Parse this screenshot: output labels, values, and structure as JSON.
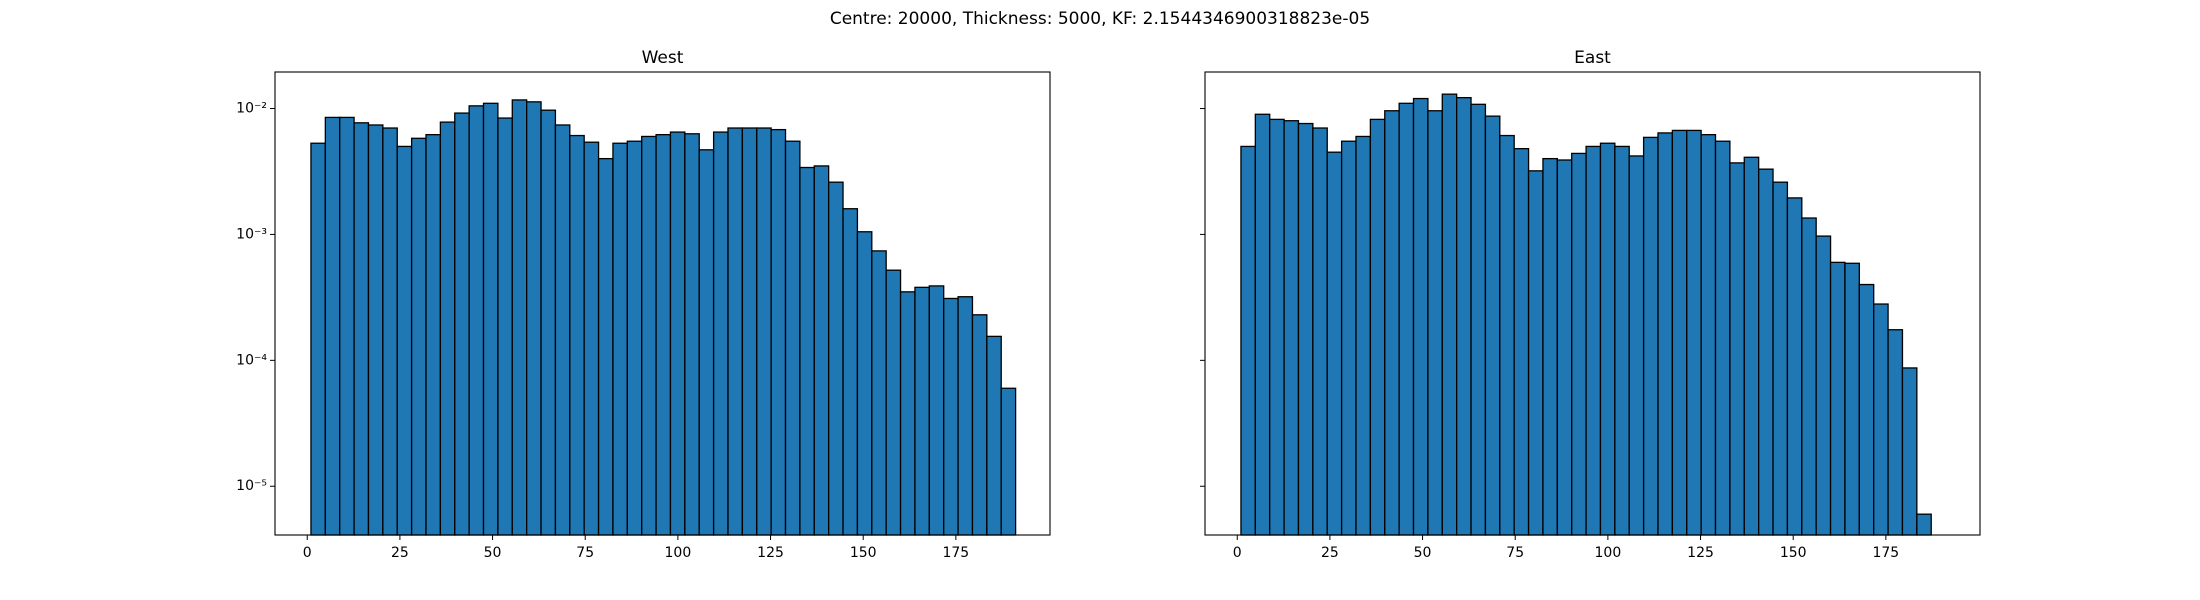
{
  "title": "Centre: 20000, Thickness: 5000, KF: 2.1544346900318823e-05",
  "chart_data": [
    {
      "type": "histogram",
      "title": "West",
      "color": "#1f77b4",
      "edgecolor": "#000000",
      "log": true,
      "bins": [
        1,
        4.88,
        8.76,
        12.64,
        16.52,
        20.4,
        24.28,
        28.16,
        32.04,
        35.92,
        39.8,
        43.68,
        47.56,
        51.44,
        55.32,
        59.2,
        63.08,
        66.96,
        70.84,
        74.72,
        78.6,
        82.48,
        86.36,
        90.24,
        94.12,
        98,
        101.88,
        105.76,
        109.64,
        113.52,
        117.4,
        121.28,
        125.16,
        129.04,
        132.92,
        136.8,
        140.68,
        144.56,
        148.44,
        152.32,
        156.2,
        160.08,
        163.96,
        167.84,
        171.72,
        175.6,
        179.48,
        183.36,
        187.24,
        191.12
      ],
      "values": [
        0.0053,
        0.0085,
        0.0085,
        0.0077,
        0.0074,
        0.007,
        0.005,
        0.0058,
        0.0062,
        0.0078,
        0.0092,
        0.0105,
        0.011,
        0.0084,
        0.0117,
        0.0113,
        0.0097,
        0.0074,
        0.0061,
        0.0054,
        0.004,
        0.0053,
        0.0055,
        0.006,
        0.0062,
        0.0065,
        0.0063,
        0.0047,
        0.0065,
        0.007,
        0.007,
        0.007,
        0.0068,
        0.0055,
        0.0034,
        0.0035,
        0.0026,
        0.0016,
        0.00105,
        0.00074,
        0.00052,
        0.00035,
        0.00038,
        0.00039,
        0.00031,
        0.00032,
        0.00023,
        0.000155,
        6e-05
      ],
      "xlim": [
        -8.7,
        200.4
      ],
      "ylim": [
        4.1e-06,
        0.0195
      ],
      "xticks": [
        0,
        25,
        50,
        75,
        100,
        125,
        150,
        175
      ],
      "yticks": [
        {
          "value": 1e-05,
          "label": "10⁻⁵"
        },
        {
          "value": 0.0001,
          "label": "10⁻⁴"
        },
        {
          "value": 0.001,
          "label": "10⁻³"
        },
        {
          "value": 0.01,
          "label": "10⁻²"
        }
      ]
    },
    {
      "type": "histogram",
      "title": "East",
      "color": "#1f77b4",
      "edgecolor": "#000000",
      "log": true,
      "bins": [
        1,
        4.88,
        8.76,
        12.64,
        16.52,
        20.4,
        24.28,
        28.16,
        32.04,
        35.92,
        39.8,
        43.68,
        47.56,
        51.44,
        55.32,
        59.2,
        63.08,
        66.96,
        70.84,
        74.72,
        78.6,
        82.48,
        86.36,
        90.24,
        94.12,
        98,
        101.88,
        105.76,
        109.64,
        113.52,
        117.4,
        121.28,
        125.16,
        129.04,
        132.92,
        136.8,
        140.68,
        144.56,
        148.44,
        152.32,
        156.2,
        160.08,
        163.96,
        167.84,
        171.72,
        175.6,
        179.48,
        183.36,
        187.24
      ],
      "values": [
        0.005,
        0.009,
        0.0082,
        0.008,
        0.0076,
        0.007,
        0.0045,
        0.0055,
        0.006,
        0.0082,
        0.0096,
        0.011,
        0.012,
        0.0096,
        0.013,
        0.0122,
        0.0108,
        0.0087,
        0.0061,
        0.0048,
        0.0032,
        0.004,
        0.0039,
        0.0044,
        0.005,
        0.0053,
        0.005,
        0.0042,
        0.0059,
        0.0064,
        0.0067,
        0.0067,
        0.0062,
        0.0055,
        0.0037,
        0.0041,
        0.0033,
        0.0026,
        0.00195,
        0.00135,
        0.00097,
        0.0006,
        0.00059,
        0.0004,
        0.00028,
        0.000175,
        8.7e-05,
        6e-06
      ],
      "xlim": [
        -8.7,
        200.4
      ],
      "ylim": [
        4.1e-06,
        0.0195
      ],
      "xticks": [
        0,
        25,
        50,
        75,
        100,
        125,
        150,
        175
      ]
    }
  ]
}
